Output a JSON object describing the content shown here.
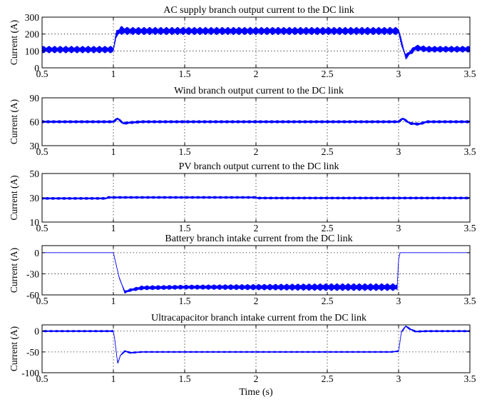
{
  "chart_data": {
    "type": "line",
    "xlabel": "Time (s)",
    "xlim": [
      0.5,
      3.5
    ],
    "xticks": [
      0.5,
      1,
      1.5,
      2,
      2.5,
      3,
      3.5
    ],
    "xtick_labels": [
      "0.5",
      "1",
      "1.5",
      "2",
      "2.5",
      "3",
      "3.5"
    ],
    "grid": true,
    "line_color": "#0000ff",
    "panels": [
      {
        "title": "AC supply branch output current to the DC link",
        "ylabel": "Current (A)",
        "ylim": [
          0,
          300
        ],
        "yticks": [
          0,
          100,
          200,
          300
        ],
        "ytick_labels": [
          "0",
          "100",
          "200",
          "300"
        ],
        "series": {
          "x": [
            0.5,
            1.0,
            1.02,
            1.05,
            1.1,
            1.5,
            2.0,
            2.5,
            3.0,
            3.02,
            3.05,
            3.08,
            3.12,
            3.2,
            3.5
          ],
          "y": [
            108,
            108,
            200,
            222,
            218,
            218,
            218,
            218,
            218,
            150,
            65,
            90,
            118,
            110,
            110
          ],
          "ripple": [
            20,
            20,
            20,
            25,
            22,
            22,
            22,
            22,
            22,
            20,
            15,
            15,
            18,
            18,
            18
          ]
        }
      },
      {
        "title": "Wind branch output current to the DC link",
        "ylabel": "Current (A)",
        "ylim": [
          30,
          90
        ],
        "yticks": [
          30,
          60,
          90
        ],
        "ytick_labels": [
          "30",
          "60",
          "90"
        ],
        "series": {
          "x": [
            0.5,
            1.0,
            1.03,
            1.07,
            1.12,
            1.2,
            3.0,
            3.03,
            3.08,
            3.14,
            3.2,
            3.5
          ],
          "y": [
            60,
            60,
            64,
            58,
            59,
            60,
            60,
            64,
            58,
            57,
            60,
            60
          ],
          "ripple": [
            1.6,
            1.6,
            1.6,
            1.6,
            1.6,
            1.6,
            1.6,
            1.6,
            1.6,
            1.6,
            1.6,
            1.6
          ]
        }
      },
      {
        "title": "PV branch output current to the DC link",
        "ylabel": "Current (A)",
        "ylim": [
          10,
          50
        ],
        "yticks": [
          10,
          30,
          50
        ],
        "ytick_labels": [
          "10",
          "30",
          "50"
        ],
        "series": {
          "x": [
            0.5,
            0.95,
            0.96,
            2.0,
            2.01,
            3.5
          ],
          "y": [
            29.5,
            29.5,
            30.3,
            30.3,
            29.8,
            29.8
          ],
          "ripple": [
            0.9,
            0.9,
            0.9,
            0.9,
            0.9,
            0.9
          ]
        }
      },
      {
        "title": "Battery branch intake current from the DC link",
        "ylabel": "Current (A)",
        "ylim": [
          -60,
          10
        ],
        "yticks": [
          -60,
          -30,
          0
        ],
        "ytick_labels": [
          "-60",
          "-30",
          "0"
        ],
        "series": {
          "x": [
            0.5,
            1.0,
            1.04,
            1.08,
            1.12,
            1.2,
            1.5,
            2.0,
            2.5,
            2.99,
            3.0,
            3.01,
            3.5
          ],
          "y": [
            0,
            0,
            -35,
            -56,
            -53,
            -50,
            -49,
            -49,
            -49,
            -49,
            -10,
            0,
            0
          ],
          "ripple": [
            0,
            0,
            1,
            2,
            2,
            3,
            3,
            4,
            5,
            5,
            1,
            0,
            0
          ]
        }
      },
      {
        "title": "Ultracapacitor branch intake current from the DC link",
        "ylabel": "Current (A)",
        "ylim": [
          -100,
          15
        ],
        "yticks": [
          -100,
          -50,
          0
        ],
        "ytick_labels": [
          "-100",
          "-50",
          "0"
        ],
        "series": {
          "x": [
            0.5,
            1.0,
            1.01,
            1.03,
            1.05,
            1.08,
            1.12,
            1.2,
            2.95,
            3.0,
            3.02,
            3.05,
            3.08,
            3.12,
            3.2,
            3.5
          ],
          "y": [
            0,
            0,
            -20,
            -78,
            -58,
            -48,
            -52,
            -50,
            -50,
            -48,
            -2,
            12,
            5,
            -1,
            0,
            0
          ],
          "ripple": [
            2,
            2,
            2,
            2,
            2,
            2,
            2,
            1.5,
            1.5,
            1.5,
            2,
            2,
            2,
            2,
            2,
            2
          ]
        }
      }
    ]
  }
}
